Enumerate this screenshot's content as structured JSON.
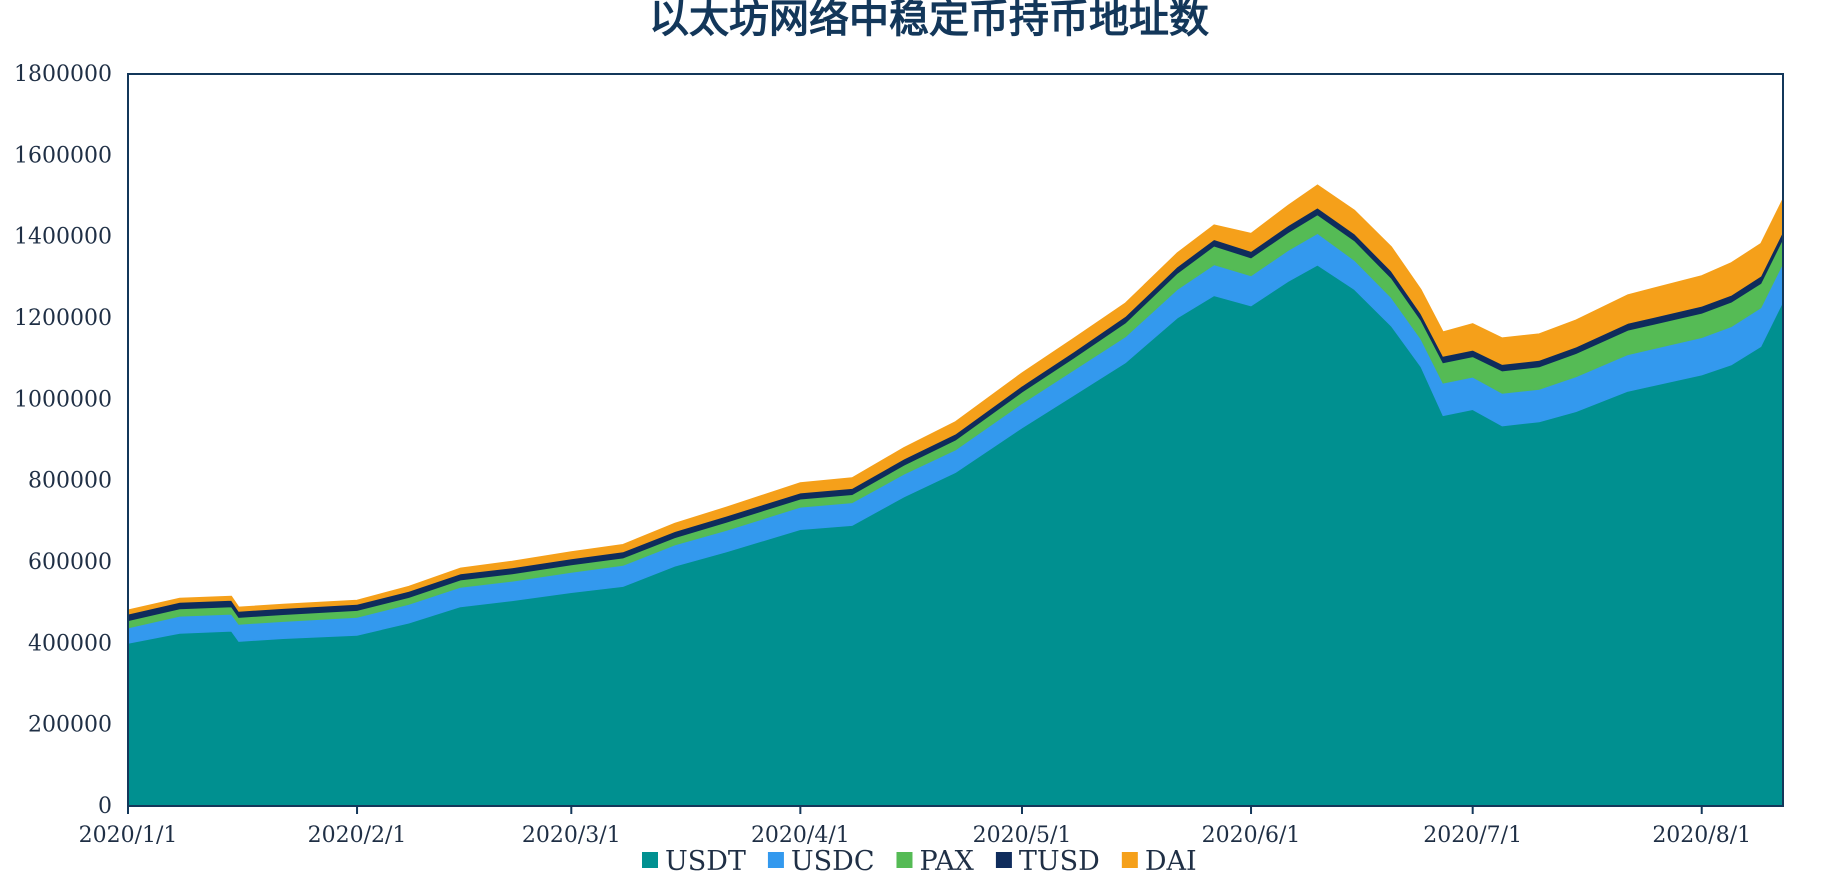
{
  "chart_data": {
    "type": "area",
    "stacked": true,
    "title": "以太坊网络中稳定币持币地址数",
    "xlabel": "",
    "ylabel": "",
    "ylim": [
      0,
      1800000
    ],
    "y_ticks": [
      0,
      200000,
      400000,
      600000,
      800000,
      1000000,
      1200000,
      1400000,
      1600000,
      1800000
    ],
    "x_tick_labels": [
      "2020/1/1",
      "2020/2/1",
      "2020/3/1",
      "2020/4/1",
      "2020/5/1",
      "2020/6/1",
      "2020/7/1",
      "2020/8/1"
    ],
    "x_tick_dates": [
      "2020-01-01",
      "2020-02-01",
      "2020-03-01",
      "2020-04-01",
      "2020-05-01",
      "2020-06-01",
      "2020-07-01",
      "2020-08-01"
    ],
    "x_range": [
      "2020-01-01",
      "2020-08-12"
    ],
    "grid": false,
    "legend_position": "bottom",
    "x": [
      "2020-01-01",
      "2020-01-08",
      "2020-01-15",
      "2020-01-16",
      "2020-01-22",
      "2020-02-01",
      "2020-02-08",
      "2020-02-15",
      "2020-02-22",
      "2020-03-01",
      "2020-03-08",
      "2020-03-15",
      "2020-03-22",
      "2020-04-01",
      "2020-04-08",
      "2020-04-15",
      "2020-04-22",
      "2020-05-01",
      "2020-05-08",
      "2020-05-15",
      "2020-05-22",
      "2020-05-27",
      "2020-06-01",
      "2020-06-06",
      "2020-06-10",
      "2020-06-15",
      "2020-06-20",
      "2020-06-24",
      "2020-06-27",
      "2020-07-01",
      "2020-07-05",
      "2020-07-10",
      "2020-07-15",
      "2020-07-22",
      "2020-08-01",
      "2020-08-05",
      "2020-08-09",
      "2020-08-12"
    ],
    "series": [
      {
        "name": "USDT",
        "color": "#009090",
        "values": [
          400000,
          425000,
          430000,
          405000,
          412000,
          420000,
          450000,
          490000,
          505000,
          525000,
          540000,
          590000,
          625000,
          680000,
          690000,
          760000,
          820000,
          930000,
          1010000,
          1090000,
          1200000,
          1255000,
          1230000,
          1290000,
          1330000,
          1270000,
          1180000,
          1080000,
          960000,
          975000,
          935000,
          945000,
          970000,
          1020000,
          1060000,
          1085000,
          1130000,
          1240000
        ]
      },
      {
        "name": "USDC",
        "color": "#3399ee",
        "values": [
          38000,
          42000,
          42000,
          42000,
          42000,
          44000,
          46000,
          48000,
          48000,
          50000,
          52000,
          52000,
          53000,
          55000,
          56000,
          56000,
          56000,
          60000,
          62000,
          64000,
          70000,
          76000,
          74000,
          76000,
          78000,
          72000,
          70000,
          68000,
          80000,
          80000,
          80000,
          80000,
          86000,
          90000,
          92000,
          94000,
          95000,
          95000
        ]
      },
      {
        "name": "PAX",
        "color": "#55bb55",
        "values": [
          18000,
          18000,
          18000,
          17000,
          17000,
          17000,
          17000,
          18000,
          18000,
          18000,
          18000,
          18000,
          20000,
          20000,
          20000,
          22000,
          24000,
          28000,
          30000,
          34000,
          40000,
          46000,
          44000,
          44000,
          46000,
          48000,
          48000,
          46000,
          50000,
          50000,
          55000,
          55000,
          57000,
          60000,
          60000,
          60000,
          60000,
          60000
        ]
      },
      {
        "name": "TUSD",
        "color": "#0f2c5c",
        "values": [
          16000,
          16000,
          16000,
          15000,
          15000,
          15000,
          15000,
          15000,
          15000,
          15000,
          15000,
          15000,
          15000,
          15000,
          15000,
          15000,
          15000,
          15000,
          15000,
          16000,
          16000,
          16000,
          16000,
          17000,
          17000,
          17000,
          17000,
          16000,
          16000,
          16000,
          16000,
          16000,
          16000,
          17000,
          17000,
          17000,
          18000,
          18000
        ]
      },
      {
        "name": "DAI",
        "color": "#f5a01a",
        "values": [
          10000,
          10000,
          10000,
          10000,
          10000,
          10000,
          12000,
          14000,
          16000,
          17000,
          18000,
          20000,
          22000,
          25000,
          26000,
          28000,
          30000,
          32000,
          33000,
          33000,
          34000,
          36000,
          44000,
          50000,
          56000,
          58000,
          60000,
          60000,
          60000,
          65000,
          65000,
          65000,
          66000,
          70000,
          75000,
          80000,
          80000,
          80000
        ]
      }
    ]
  }
}
